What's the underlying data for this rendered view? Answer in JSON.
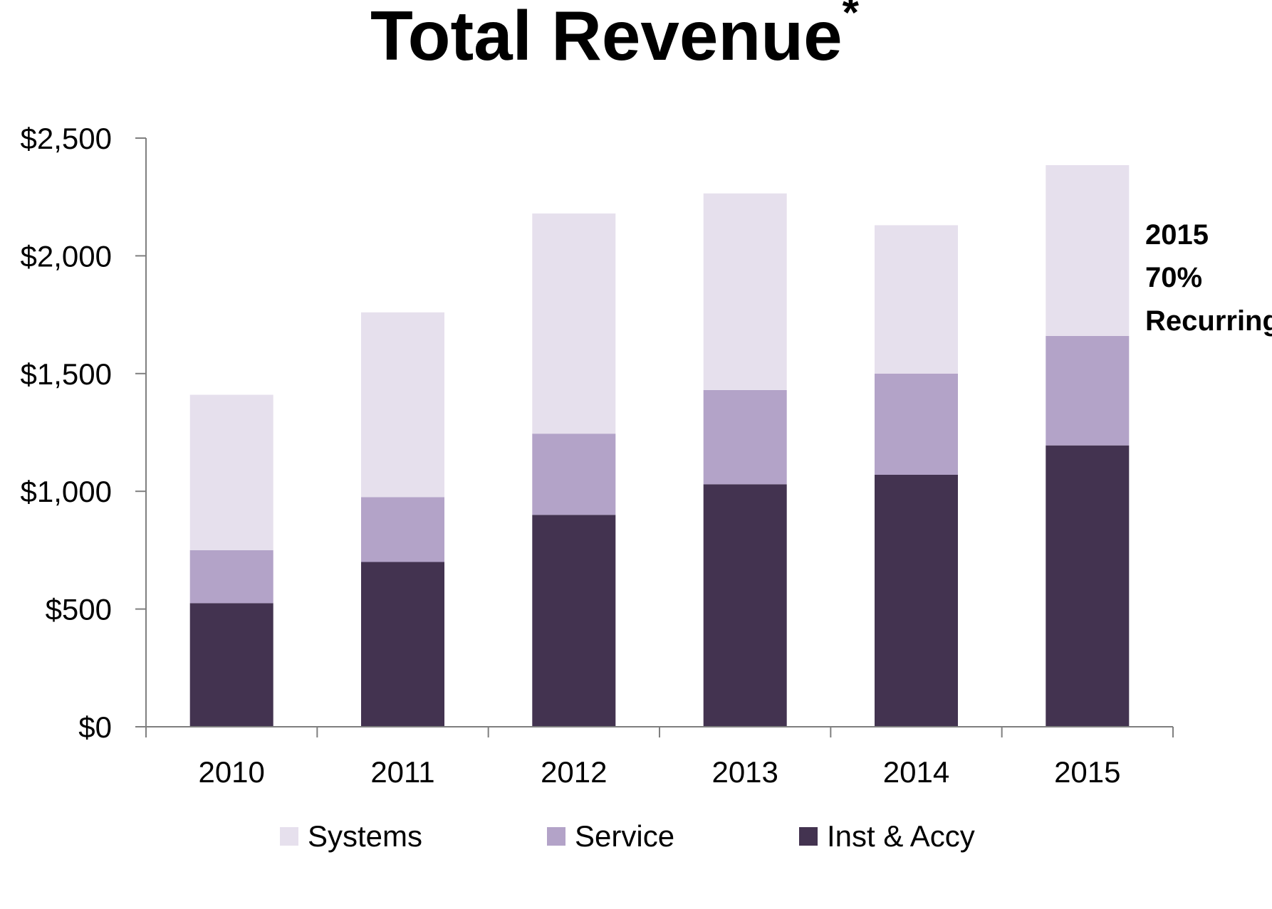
{
  "chart_data": {
    "type": "bar",
    "stacked": true,
    "title": "Total Revenue",
    "title_mark": "*",
    "xlabel": "",
    "ylabel": "",
    "categories": [
      "2010",
      "2011",
      "2012",
      "2013",
      "2014",
      "2015"
    ],
    "ylim": [
      0,
      2500
    ],
    "y_ticks": [
      0,
      500,
      1000,
      1500,
      2000,
      2500
    ],
    "y_tick_labels": [
      "$0",
      "$500",
      "$1,000",
      "$1,500",
      "$2,000",
      "$2,500"
    ],
    "grid": false,
    "legend_position": "bottom",
    "series": [
      {
        "name": "Inst & Accy",
        "color": "#433350",
        "values": [
          525,
          700,
          900,
          1030,
          1070,
          1195
        ]
      },
      {
        "name": "Service",
        "color": "#b3a3c8",
        "values": [
          225,
          275,
          345,
          400,
          430,
          465
        ]
      },
      {
        "name": "Systems",
        "color": "#e6e0ed",
        "values": [
          660,
          785,
          935,
          835,
          630,
          725
        ]
      }
    ],
    "legend_order": [
      "Systems",
      "Service",
      "Inst & Accy"
    ],
    "annotation": {
      "lines": [
        "2015",
        "70%",
        "Recurring"
      ],
      "anchor_category": "2015"
    },
    "axis_color": "#7f7f7f"
  }
}
